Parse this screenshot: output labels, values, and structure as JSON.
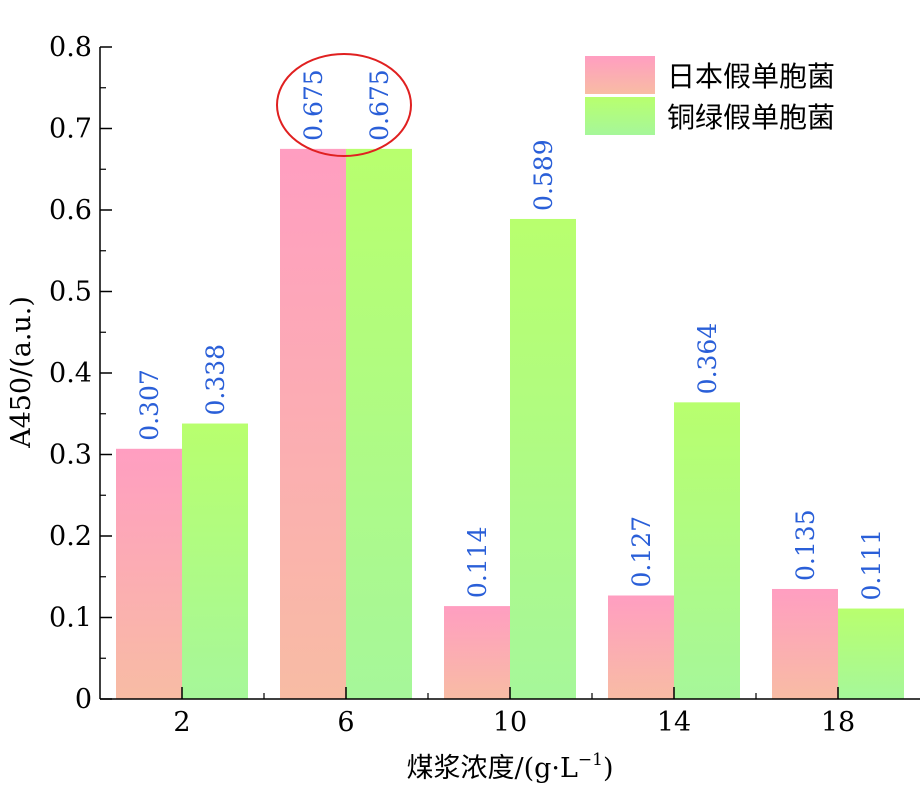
{
  "chart_data": {
    "type": "bar",
    "categories": [
      "2",
      "6",
      "10",
      "14",
      "18"
    ],
    "series": [
      {
        "name": "日本假单胞菌",
        "values": [
          0.307,
          0.675,
          0.114,
          0.127,
          0.135
        ],
        "labels": [
          "0.307",
          "0.675",
          "0.114",
          "0.127",
          "0.135"
        ],
        "color_top": "#ff9ec1",
        "color_bottom": "#f8bca4"
      },
      {
        "name": "铜绿假单胞菌",
        "values": [
          0.338,
          0.675,
          0.589,
          0.364,
          0.111
        ],
        "labels": [
          "0.338",
          "0.675",
          "0.589",
          "0.364",
          "0.111"
        ],
        "color_top": "#b8ff6e",
        "color_bottom": "#a6f79a"
      }
    ],
    "ylim": [
      0,
      0.8
    ],
    "yticks": [
      0,
      0.1,
      0.2,
      0.3,
      0.4,
      0.5,
      0.6,
      0.7,
      0.8
    ],
    "ytick_labels": [
      "0",
      "0.1",
      "0.2",
      "0.3",
      "0.4",
      "0.5",
      "0.6",
      "0.7",
      "0.8"
    ],
    "xlabel": "煤浆浓度/(g·L⁻¹)",
    "ylabel": "A450/(a.u.)",
    "legend_position": "top-right",
    "label_color": "#2a5fd8",
    "highlight": {
      "category_index": 1,
      "shape": "ellipse",
      "color": "#e02020"
    },
    "grid": false
  }
}
